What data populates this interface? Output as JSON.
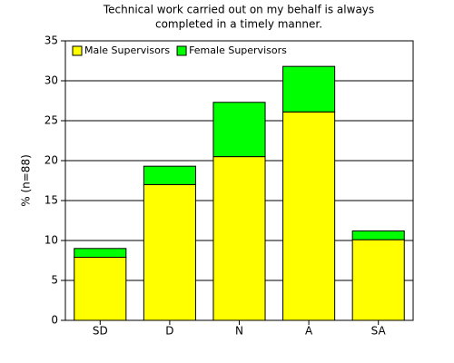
{
  "chart_data": {
    "type": "stacked-bar",
    "title": [
      "Technical work carried out on my behalf is always",
      "completed in a timely manner."
    ],
    "y_label": "% (n=88)",
    "categories": [
      "SD",
      "D",
      "N",
      "A",
      "SA"
    ],
    "series": [
      {
        "name": "Male Supervisors",
        "color": "#ffff00",
        "values": [
          7.9,
          17.0,
          20.5,
          26.1,
          10.1
        ]
      },
      {
        "name": "Female Supervisors",
        "color": "#00ff00",
        "values": [
          1.1,
          2.3,
          6.8,
          5.7,
          1.1
        ]
      }
    ],
    "ylim": [
      0,
      35
    ],
    "yticks": [
      0,
      5,
      10,
      15,
      20,
      25,
      30,
      35
    ],
    "grid": true,
    "legend": "top-left"
  }
}
